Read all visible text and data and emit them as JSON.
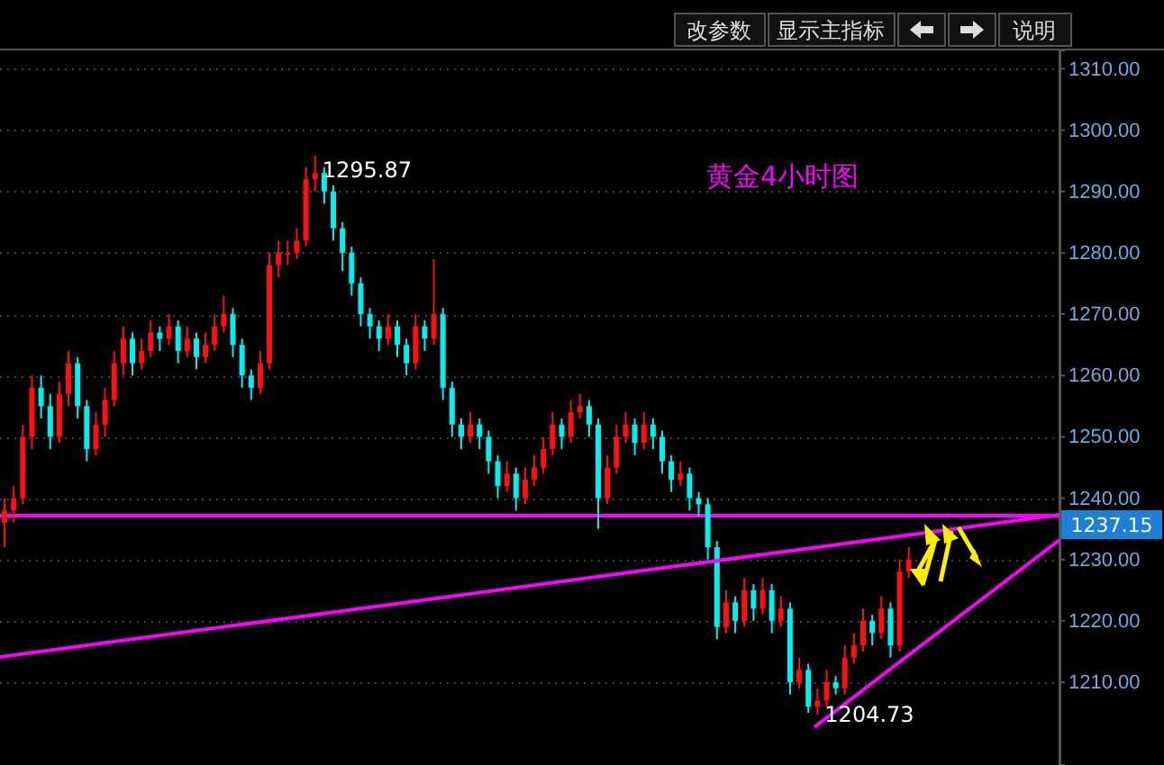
{
  "chart_data": {
    "type": "candlestick",
    "title": "黄金4小时图",
    "categories": [
      null,
      null,
      null,
      null,
      null,
      null,
      null,
      null,
      null,
      null,
      null,
      null,
      null,
      null,
      null,
      null,
      null,
      null,
      null,
      null,
      null,
      null,
      null,
      null,
      null,
      null,
      null,
      null,
      null,
      null,
      null,
      null,
      null,
      null,
      null,
      null,
      null,
      null,
      null,
      null,
      null,
      null,
      null,
      null,
      null,
      null,
      null,
      null,
      null,
      null,
      null,
      null,
      null,
      null,
      null,
      null,
      null,
      null,
      null,
      null,
      null,
      null,
      null,
      null,
      null,
      null,
      null,
      null,
      null,
      null,
      null,
      null,
      null,
      null,
      null,
      null,
      null,
      null,
      null,
      null,
      null,
      null,
      null,
      null,
      null,
      null,
      null,
      null,
      null,
      null,
      null,
      null,
      null,
      null,
      null,
      null,
      null,
      null,
      null,
      null,
      null,
      null,
      null,
      null,
      null,
      null,
      null,
      null,
      null,
      null,
      null,
      null,
      null,
      null,
      null,
      null
    ],
    "ohlc": [
      [
        1236,
        1240,
        1232,
        1238
      ],
      [
        1238,
        1242,
        1236,
        1240
      ],
      [
        1240,
        1252,
        1239,
        1250
      ],
      [
        1250,
        1260,
        1248,
        1258
      ],
      [
        1258,
        1260,
        1253,
        1255
      ],
      [
        1255,
        1257,
        1248,
        1250
      ],
      [
        1250,
        1259,
        1249,
        1257
      ],
      [
        1257,
        1264,
        1255,
        1262
      ],
      [
        1262,
        1263,
        1253,
        1255
      ],
      [
        1255,
        1256,
        1246,
        1248
      ],
      [
        1248,
        1254,
        1247,
        1252
      ],
      [
        1252,
        1258,
        1250,
        1256
      ],
      [
        1256,
        1264,
        1255,
        1262
      ],
      [
        1262,
        1268,
        1260,
        1266
      ],
      [
        1266,
        1267,
        1260,
        1262
      ],
      [
        1262,
        1266,
        1261,
        1264
      ],
      [
        1264,
        1269,
        1263,
        1267
      ],
      [
        1267,
        1268,
        1264,
        1266
      ],
      [
        1266,
        1270,
        1265,
        1268
      ],
      [
        1268,
        1269,
        1262,
        1264
      ],
      [
        1264,
        1268,
        1263,
        1266
      ],
      [
        1266,
        1267,
        1261,
        1263
      ],
      [
        1263,
        1267,
        1262,
        1265
      ],
      [
        1265,
        1270,
        1264,
        1268
      ],
      [
        1268,
        1273,
        1267,
        1270
      ],
      [
        1270,
        1271,
        1263,
        1265
      ],
      [
        1265,
        1266,
        1258,
        1260
      ],
      [
        1260,
        1261,
        1256,
        1258
      ],
      [
        1258,
        1264,
        1257,
        1262
      ],
      [
        1262,
        1280,
        1261,
        1278
      ],
      [
        1278,
        1282,
        1276,
        1280
      ],
      [
        1280,
        1282,
        1278,
        1280
      ],
      [
        1280,
        1284,
        1279,
        1282
      ],
      [
        1282,
        1294,
        1281,
        1292
      ],
      [
        1292,
        1295.87,
        1290,
        1293
      ],
      [
        1293,
        1294,
        1288,
        1290
      ],
      [
        1290,
        1291,
        1282,
        1284
      ],
      [
        1284,
        1285,
        1277,
        1280
      ],
      [
        1280,
        1281,
        1273,
        1275
      ],
      [
        1275,
        1276,
        1268,
        1270
      ],
      [
        1270,
        1271,
        1266,
        1268
      ],
      [
        1268,
        1269,
        1264,
        1266
      ],
      [
        1266,
        1270,
        1265,
        1268
      ],
      [
        1268,
        1269,
        1263,
        1265
      ],
      [
        1265,
        1266,
        1260,
        1262
      ],
      [
        1262,
        1270,
        1261,
        1268
      ],
      [
        1268,
        1269,
        1264,
        1266
      ],
      [
        1266,
        1279,
        1265,
        1270
      ],
      [
        1270,
        1271,
        1256,
        1258
      ],
      [
        1258,
        1259,
        1250,
        1252
      ],
      [
        1252,
        1253,
        1248,
        1250
      ],
      [
        1250,
        1254,
        1249,
        1252
      ],
      [
        1252,
        1253,
        1248,
        1250
      ],
      [
        1250,
        1251,
        1244,
        1246
      ],
      [
        1246,
        1247,
        1240,
        1242
      ],
      [
        1242,
        1246,
        1241,
        1244
      ],
      [
        1244,
        1245,
        1238,
        1240
      ],
      [
        1240,
        1245,
        1239,
        1243
      ],
      [
        1243,
        1247,
        1242,
        1245
      ],
      [
        1245,
        1250,
        1244,
        1248
      ],
      [
        1248,
        1254,
        1247,
        1252
      ],
      [
        1252,
        1253,
        1248,
        1250
      ],
      [
        1250,
        1256,
        1249,
        1254
      ],
      [
        1254,
        1257,
        1253,
        1255
      ],
      [
        1255,
        1256,
        1250,
        1252
      ],
      [
        1252,
        1253,
        1235,
        1240
      ],
      [
        1240,
        1247,
        1239,
        1245
      ],
      [
        1245,
        1252,
        1244,
        1250
      ],
      [
        1250,
        1254,
        1249,
        1252
      ],
      [
        1252,
        1253,
        1247,
        1249
      ],
      [
        1249,
        1254,
        1248,
        1252
      ],
      [
        1252,
        1253,
        1248,
        1250
      ],
      [
        1250,
        1251,
        1244,
        1246
      ],
      [
        1246,
        1247,
        1241,
        1243
      ],
      [
        1243,
        1246,
        1242,
        1244
      ],
      [
        1244,
        1245,
        1238,
        1240
      ],
      [
        1240,
        1241,
        1237,
        1239
      ],
      [
        1239,
        1240,
        1230,
        1232
      ],
      [
        1232,
        1233,
        1217,
        1219
      ],
      [
        1219,
        1225,
        1218,
        1223
      ],
      [
        1223,
        1224,
        1218,
        1220
      ],
      [
        1220,
        1227,
        1219,
        1225
      ],
      [
        1225,
        1226,
        1220,
        1222
      ],
      [
        1222,
        1227,
        1221,
        1225
      ],
      [
        1225,
        1226,
        1218,
        1220
      ],
      [
        1220,
        1224,
        1219,
        1222
      ],
      [
        1222,
        1223,
        1208,
        1210
      ],
      [
        1210,
        1214,
        1209,
        1212
      ],
      [
        1212,
        1213,
        1205,
        1206
      ],
      [
        1206,
        1209,
        1204.73,
        1207
      ],
      [
        1207,
        1212,
        1206,
        1210
      ],
      [
        1210,
        1211,
        1208,
        1209
      ],
      [
        1209,
        1216,
        1208,
        1214
      ],
      [
        1214,
        1218,
        1213,
        1216
      ],
      [
        1216,
        1222,
        1215,
        1220
      ],
      [
        1220,
        1221,
        1216,
        1218
      ],
      [
        1218,
        1224,
        1217,
        1222
      ],
      [
        1222,
        1223,
        1214,
        1216
      ],
      [
        1216,
        1230,
        1215,
        1228
      ],
      [
        1228,
        1232,
        1227,
        1230
      ],
      null,
      null,
      null,
      null,
      null,
      null,
      null,
      null,
      null,
      null,
      null,
      null,
      null,
      null,
      null,
      null
    ],
    "ylim": [
      1196.5,
      1313
    ],
    "yticks": [
      {
        "value": 1210,
        "label": "1210.00"
      },
      {
        "value": 1220,
        "label": "1220.00"
      },
      {
        "value": 1230,
        "label": "1230.00"
      },
      {
        "value": 1240,
        "label": "1240.00"
      },
      {
        "value": 1250,
        "label": "1250.00"
      },
      {
        "value": 1260,
        "label": "1260.00"
      },
      {
        "value": 1270,
        "label": "1270.00"
      },
      {
        "value": 1280,
        "label": "1280.00"
      },
      {
        "value": 1290,
        "label": "1290.00"
      },
      {
        "value": 1300,
        "label": "1300.00"
      },
      {
        "value": 1310,
        "label": "1310.00"
      }
    ],
    "tick_labels": "y",
    "grid": "y",
    "ref_lines": [
      {
        "axis": "y",
        "value": 1237.15,
        "label": "1237.15",
        "color": "#ff00ff"
      }
    ],
    "annotations": [
      "1295.87",
      "1204.73",
      "改参数",
      "显示主指标",
      "说明"
    ]
  }
}
